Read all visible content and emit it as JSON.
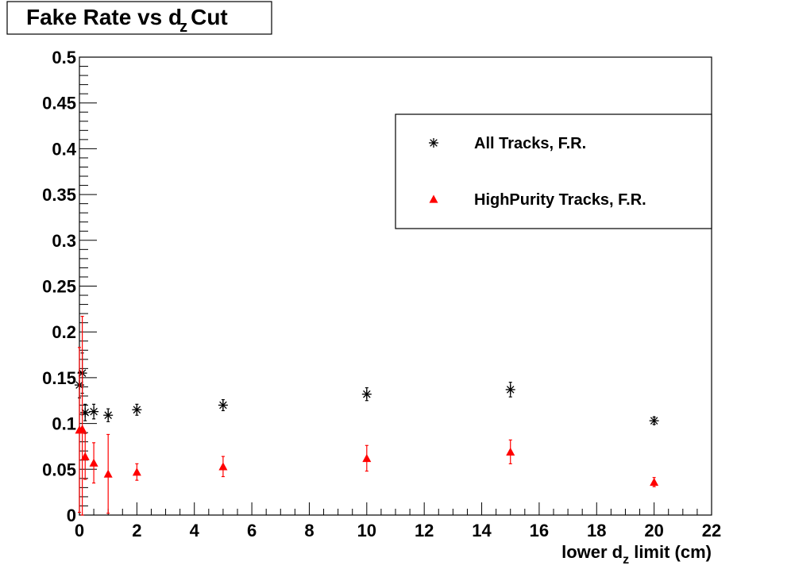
{
  "chart_data": {
    "type": "scatter",
    "title_main": "Fake Rate vs d",
    "title_sub": "z",
    "title_end": "Cut",
    "xlabel_main": "lower d",
    "xlabel_sub": "z",
    "xlabel_end": " limit (cm)",
    "ylabel": "",
    "xlim": [
      0,
      22
    ],
    "ylim": [
      0,
      0.5
    ],
    "x_ticks": [
      0,
      2,
      4,
      6,
      8,
      10,
      12,
      14,
      16,
      18,
      20,
      22
    ],
    "y_ticks": [
      0,
      0.05,
      0.1,
      0.15,
      0.2,
      0.25,
      0.3,
      0.35,
      0.4,
      0.45,
      0.5
    ],
    "x_tick_labels": [
      "0",
      "2",
      "4",
      "6",
      "8",
      "10",
      "12",
      "14",
      "16",
      "18",
      "20",
      "22"
    ],
    "y_tick_labels": [
      "0",
      "0.05",
      "0.1",
      "0.15",
      "0.2",
      "0.25",
      "0.3",
      "0.35",
      "0.4",
      "0.45",
      "0.5"
    ],
    "grid": false,
    "legend_position": "top-right",
    "series": [
      {
        "name": "All Tracks, F.R.",
        "marker": "asterisk",
        "color": "#000000",
        "x": [
          0,
          0.1,
          0.2,
          0.5,
          1,
          2,
          5,
          10,
          15,
          20
        ],
        "y": [
          0.142,
          0.155,
          0.112,
          0.113,
          0.109,
          0.115,
          0.12,
          0.132,
          0.137,
          0.103
        ],
        "yerr": [
          0.014,
          0.022,
          0.009,
          0.008,
          0.007,
          0.006,
          0.006,
          0.007,
          0.008,
          0.004
        ]
      },
      {
        "name": "HighPurity Tracks, F.R.",
        "marker": "triangle",
        "color": "#ff0000",
        "x": [
          0,
          0.1,
          0.2,
          0.5,
          1,
          2,
          5,
          10,
          15,
          20
        ],
        "y": [
          0.093,
          0.094,
          0.064,
          0.057,
          0.045,
          0.047,
          0.053,
          0.062,
          0.069,
          0.036
        ],
        "yerr": [
          0.09,
          0.123,
          0.025,
          0.022,
          0.043,
          0.009,
          0.011,
          0.014,
          0.013,
          0.005
        ]
      }
    ]
  }
}
